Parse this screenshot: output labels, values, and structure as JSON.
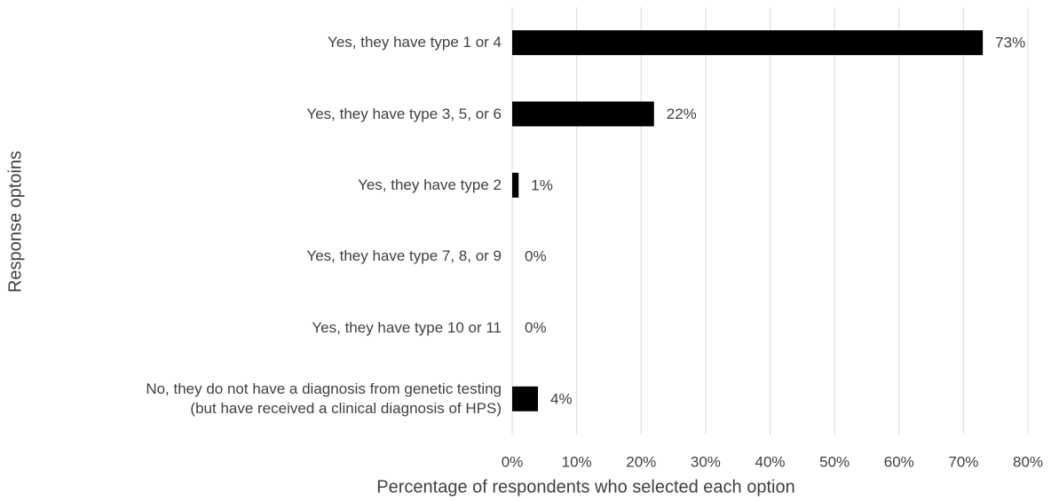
{
  "chart_data": {
    "type": "bar",
    "orientation": "horizontal",
    "x_label": "Percentage of respondents who selected each option",
    "y_label": "Response optoins",
    "categories": [
      "Yes, they have type 1 or 4",
      "Yes, they have type 3, 5, or 6",
      "Yes, they have type 2",
      "Yes, they have type 7, 8, or 9",
      "Yes, they have type 10 or 11",
      "No, they do not have a diagnosis from genetic testing\n(but have received a clinical diagnosis of HPS)"
    ],
    "values": [
      73,
      22,
      1,
      0,
      0,
      4
    ],
    "value_labels": [
      "73%",
      "22%",
      "1%",
      "0%",
      "0%",
      "4%"
    ],
    "color": "#000000",
    "xlim": [
      0,
      80
    ],
    "xticks": [
      {
        "value": 0,
        "label": "0%"
      },
      {
        "value": 10,
        "label": "10%"
      },
      {
        "value": 20,
        "label": "20%"
      },
      {
        "value": 30,
        "label": "30%"
      },
      {
        "value": 40,
        "label": "40%"
      },
      {
        "value": 50,
        "label": "50%"
      },
      {
        "value": 60,
        "label": "60%"
      },
      {
        "value": 70,
        "label": "70%"
      },
      {
        "value": 80,
        "label": "80%"
      }
    ],
    "grid": true
  }
}
